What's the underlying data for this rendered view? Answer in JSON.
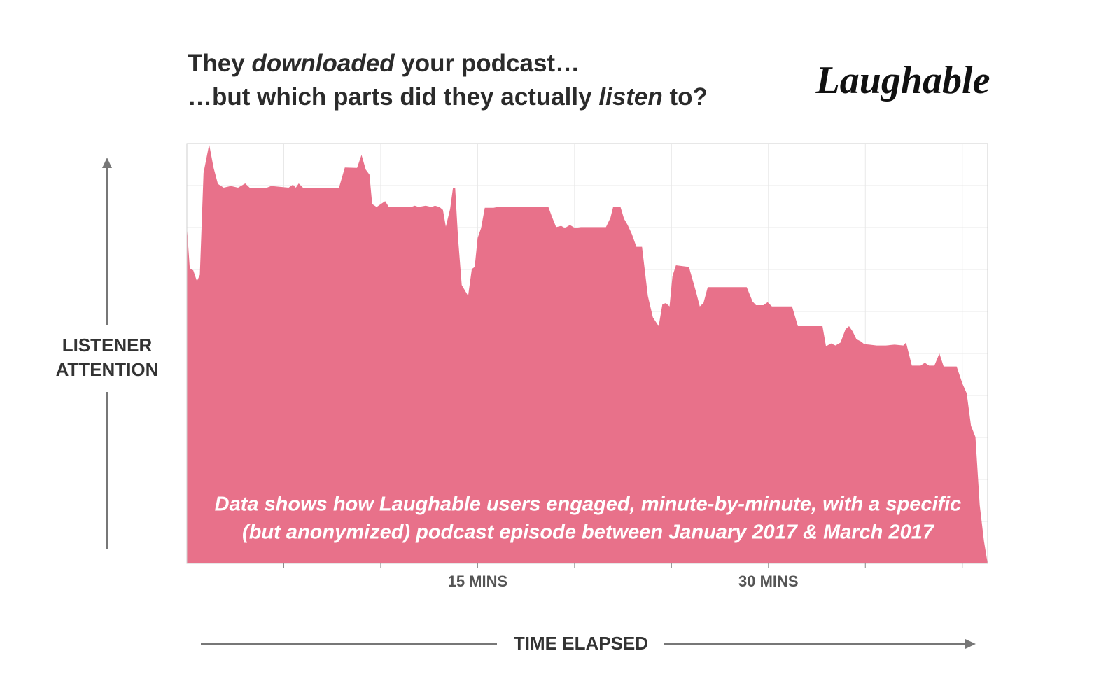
{
  "chart_data": {
    "type": "area",
    "title": {
      "line1": [
        "They",
        "downloaded",
        "your podcast…"
      ],
      "line2": [
        "…but which parts did they actually",
        "listen",
        "to?"
      ]
    },
    "logo": "Laughable",
    "y_label": [
      "LISTENER",
      "ATTENTION"
    ],
    "x_label": "TIME ELAPSED",
    "annotation": [
      "Data shows how Laughable users engaged, minute-by-minute, with a specific",
      "(but anonymized) podcast episode between January 2017 & March 2017"
    ],
    "color": "#e8718a",
    "grid": true,
    "xlim": [
      0,
      41.31
    ],
    "ylim": [
      0,
      100
    ],
    "xticks": [
      {
        "value": 15,
        "label": "15 MINS"
      },
      {
        "value": 30,
        "label": "30 MINS"
      }
    ],
    "xminor_ticks": [
      5,
      10,
      20,
      25,
      35,
      40
    ],
    "ygrid": [
      10,
      20,
      30,
      40,
      50,
      60,
      70,
      80,
      90
    ],
    "x": [
      0,
      0.15,
      0.33,
      0.52,
      0.67,
      0.86,
      1.15,
      1.38,
      1.6,
      1.9,
      2.27,
      2.64,
      3.01,
      3.24,
      4.13,
      4.35,
      5.25,
      5.47,
      5.62,
      5.77,
      5.99,
      7.85,
      8.15,
      8.78,
      9.01,
      9.23,
      9.42,
      9.56,
      9.79,
      10.01,
      10.23,
      10.42,
      11.57,
      11.76,
      11.95,
      12.32,
      12.62,
      12.8,
      13.03,
      13.21,
      13.36,
      13.58,
      13.73,
      13.84,
      13.99,
      14.18,
      14.51,
      14.7,
      14.85,
      15.0,
      15.18,
      15.37,
      15.82,
      16.04,
      18.65,
      18.83,
      19.05,
      19.31,
      19.5,
      19.76,
      20.02,
      20.32,
      21.62,
      21.85,
      21.99,
      22.37,
      22.55,
      22.74,
      22.96,
      23.19,
      23.48,
      23.78,
      24.04,
      24.34,
      24.53,
      24.71,
      24.9,
      25.05,
      25.23,
      25.9,
      26.27,
      26.46,
      26.65,
      26.87,
      27.13,
      28.88,
      29.18,
      29.36,
      29.74,
      29.96,
      30.18,
      31.22,
      31.52,
      32.79,
      32.97,
      33.23,
      33.46,
      33.72,
      33.98,
      34.16,
      34.35,
      34.54,
      34.76,
      34.95,
      35.21,
      35.58,
      36.06,
      36.51,
      36.96,
      37.1,
      37.4,
      37.85,
      38.07,
      38.29,
      38.56,
      38.82,
      39.04,
      39.71,
      40.01,
      40.23,
      40.45,
      40.68,
      40.9,
      41.12,
      41.31
    ],
    "values": [
      80.4,
      70.3,
      69.8,
      67.2,
      68.7,
      93.0,
      99.8,
      94.2,
      90.4,
      89.5,
      89.9,
      89.5,
      90.5,
      89.5,
      89.5,
      89.9,
      89.5,
      90.2,
      89.5,
      90.5,
      89.5,
      89.5,
      94.3,
      94.2,
      97.3,
      93.8,
      92.6,
      85.6,
      84.9,
      85.6,
      86.3,
      84.9,
      84.9,
      85.2,
      84.9,
      85.2,
      84.9,
      85.2,
      84.9,
      84.2,
      80.2,
      84.4,
      89.5,
      89.5,
      77.5,
      66.3,
      63.7,
      70.1,
      70.6,
      77.5,
      79.9,
      84.7,
      84.7,
      84.9,
      84.9,
      82.6,
      80.1,
      80.4,
      79.9,
      80.6,
      79.9,
      80.1,
      80.1,
      82.3,
      84.9,
      84.9,
      82.1,
      80.6,
      78.4,
      75.4,
      75.4,
      63.7,
      58.6,
      56.5,
      61.7,
      62.0,
      61.2,
      68.4,
      71.0,
      70.6,
      64.6,
      61.2,
      62.0,
      65.8,
      65.8,
      65.8,
      62.4,
      61.5,
      61.5,
      62.2,
      61.2,
      61.2,
      56.5,
      56.5,
      51.7,
      52.4,
      51.9,
      52.6,
      55.8,
      56.5,
      55.2,
      53.4,
      52.9,
      52.2,
      52.1,
      51.9,
      51.9,
      52.1,
      51.9,
      52.6,
      47.1,
      47.1,
      47.8,
      47.1,
      47.1,
      50.0,
      46.9,
      46.9,
      42.8,
      40.5,
      32.8,
      30.1,
      13.9,
      5.3,
      0
    ]
  }
}
